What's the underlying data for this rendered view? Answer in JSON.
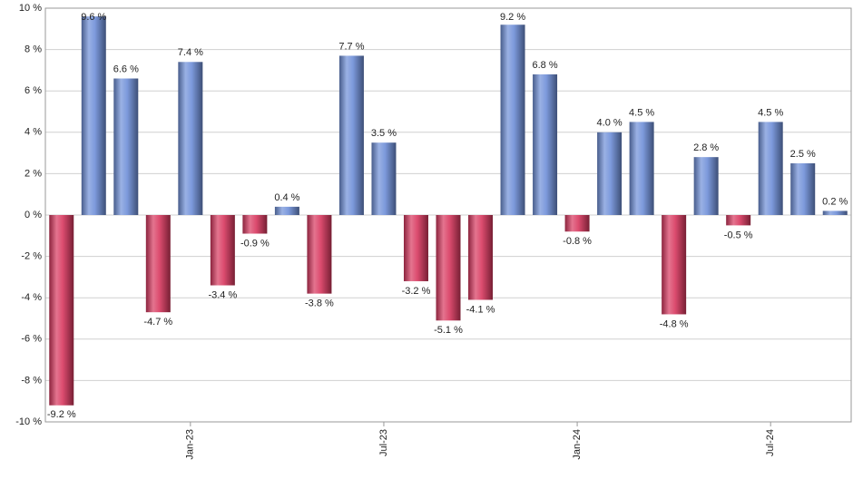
{
  "chart_data": {
    "type": "bar",
    "categories": [
      null,
      null,
      null,
      null,
      "Jan-23",
      null,
      null,
      null,
      null,
      null,
      "Jul-23",
      null,
      null,
      null,
      null,
      null,
      "Jan-24",
      null,
      null,
      null,
      null,
      null,
      "Jul-24",
      null,
      null
    ],
    "values": [
      -9.2,
      9.6,
      6.6,
      -4.7,
      7.4,
      -3.4,
      -0.9,
      0.4,
      -3.8,
      7.7,
      3.5,
      -3.2,
      -5.1,
      -4.1,
      9.2,
      6.8,
      -0.8,
      4.0,
      4.5,
      -4.8,
      2.8,
      -0.5,
      4.5,
      2.5,
      0.2
    ],
    "value_labels": [
      "-9.2 %",
      "9.6 %",
      "6.6 %",
      "-4.7 %",
      "7.4 %",
      "-3.4 %",
      "-0.9 %",
      "0.4 %",
      "-3.8 %",
      "7.7 %",
      "3.5 %",
      "-3.2 %",
      "-5.1 %",
      "-4.1 %",
      "9.2 %",
      "6.8 %",
      "-0.8 %",
      "4.0 %",
      "4.5 %",
      "-4.8 %",
      "2.8 %",
      "-0.5 %",
      "4.5 %",
      "2.5 %",
      "0.2 %"
    ],
    "positive_color": "#6f8fd8",
    "negative_color": "#d8385f",
    "ylim": [
      -10,
      10
    ],
    "yticks": [
      {
        "value": -10,
        "label": "-10 %"
      },
      {
        "value": -8,
        "label": "-8 %"
      },
      {
        "value": -6,
        "label": "-6 %"
      },
      {
        "value": -4,
        "label": "-4 %"
      },
      {
        "value": -2,
        "label": "-2 %"
      },
      {
        "value": 0,
        "label": "0 %"
      },
      {
        "value": 2,
        "label": "2 %"
      },
      {
        "value": 4,
        "label": "4 %"
      },
      {
        "value": 6,
        "label": "6 %"
      },
      {
        "value": 8,
        "label": "8 %"
      },
      {
        "value": 10,
        "label": "10 %"
      }
    ],
    "grid": true
  }
}
